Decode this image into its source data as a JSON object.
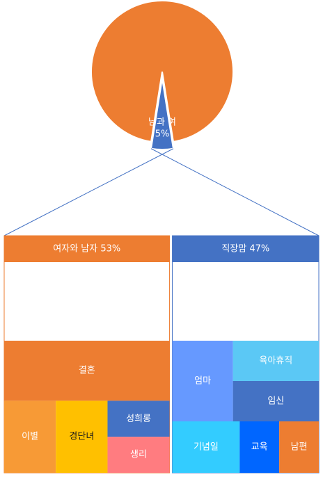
{
  "chart_data": {
    "type": "pie",
    "pie": {
      "slices": [
        {
          "label": "",
          "value": 95,
          "color": "#ED7D31"
        },
        {
          "label": "남과 여",
          "value": 5,
          "value_label": "5%",
          "color": "#4472C4"
        }
      ]
    },
    "treemap": {
      "type": "treemap",
      "groups": [
        {
          "name": "여자와 남자 53%",
          "value": 53,
          "header_color": "#ED7D31",
          "items": [
            {
              "label": "결혼",
              "value": 40,
              "color": "#ED7D31"
            },
            {
              "label": "이별",
              "value": 15,
              "color": "#F79A36"
            },
            {
              "label": "경단녀",
              "value": 15,
              "color": "#FFC000",
              "text_color": "#1a1a1a"
            },
            {
              "label": "성희롱",
              "value": 9,
              "color": "#4472C4"
            },
            {
              "label": "생리",
              "value": 9,
              "color": "#FF7C80"
            }
          ]
        },
        {
          "name": "직장맘 47%",
          "value": 47,
          "header_color": "#4472C4",
          "items": [
            {
              "label": "엄마",
              "value": 24,
              "color": "#6699FF"
            },
            {
              "label": "육아휴직",
              "value": 17,
              "color": "#5BC8F5"
            },
            {
              "label": "임신",
              "value": 17,
              "color": "#4472C4"
            },
            {
              "label": "기념일",
              "value": 17,
              "color": "#33CCFF"
            },
            {
              "label": "교육",
              "value": 10,
              "color": "#0066FF"
            },
            {
              "label": "남편",
              "value": 10,
              "color": "#ED7D31"
            }
          ]
        }
      ]
    }
  }
}
